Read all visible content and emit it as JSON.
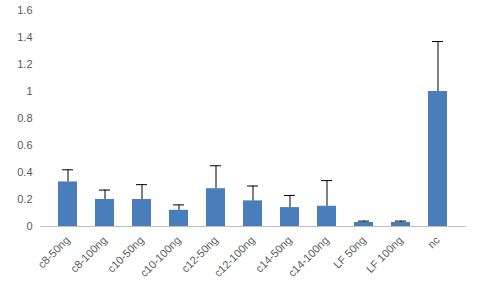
{
  "chart_data": {
    "type": "bar",
    "categories": [
      "c8-50ng",
      "c8-100ng",
      "c10-50ng",
      "c10-100ng",
      "c12-50ng",
      "c12-100ng",
      "c14-50ng",
      "c14-100ng",
      "LF 50ng",
      "LF 100ng",
      "nc"
    ],
    "values": [
      0.33,
      0.2,
      0.2,
      0.12,
      0.28,
      0.19,
      0.14,
      0.15,
      0.03,
      0.03,
      1.0
    ],
    "errors": [
      0.09,
      0.07,
      0.11,
      0.04,
      0.17,
      0.11,
      0.09,
      0.19,
      0.01,
      0.01,
      0.37
    ],
    "color": "#4a7ebb",
    "ylim": [
      0,
      1.6
    ],
    "yticks": [
      0,
      0.2,
      0.4,
      0.6,
      0.8,
      1,
      1.2,
      1.4,
      1.6
    ],
    "grid": false
  }
}
